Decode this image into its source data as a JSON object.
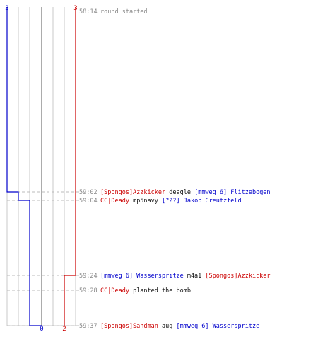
{
  "colors": {
    "team_blue": "#0000cc",
    "team_red": "#cc0000",
    "text": "#111111",
    "muted": "#888888",
    "grid": "#c8c8c8",
    "center": "#888888",
    "dashed": "#bbbbbb"
  },
  "score": {
    "blue_start": "3",
    "red_start": "3",
    "blue_end": "0",
    "red_end": "2"
  },
  "events": [
    {
      "time": "58:14",
      "kind": "info",
      "parts": [
        {
          "text": "round started",
          "team": "muted"
        }
      ]
    },
    {
      "time": "59:02",
      "kind": "kill",
      "parts": [
        {
          "text": "[Spongos]Azzkicker",
          "team": "red"
        },
        {
          "text": " deagle ",
          "team": "text"
        },
        {
          "text": "[mmweg 6] Flitzebogen",
          "team": "blue"
        }
      ]
    },
    {
      "time": "59:04",
      "kind": "kill",
      "parts": [
        {
          "text": "CC|Deady",
          "team": "red"
        },
        {
          "text": " mp5navy ",
          "team": "text"
        },
        {
          "text": "[???] Jakob Creutzfeld",
          "team": "blue"
        }
      ]
    },
    {
      "time": "59:24",
      "kind": "kill",
      "parts": [
        {
          "text": "[mmweg 6] Wasserspritze",
          "team": "blue"
        },
        {
          "text": " m4a1 ",
          "team": "text"
        },
        {
          "text": "[Spongos]Azzkicker",
          "team": "red"
        }
      ]
    },
    {
      "time": "59:28",
      "kind": "bomb",
      "parts": [
        {
          "text": "CC|Deady",
          "team": "red"
        },
        {
          "text": " planted the bomb",
          "team": "text"
        }
      ]
    },
    {
      "time": "59:37",
      "kind": "kill",
      "parts": [
        {
          "text": "[Spongos]Sandman",
          "team": "red"
        },
        {
          "text": " aug ",
          "team": "text"
        },
        {
          "text": "[mmweg 6] Wasserspritze",
          "team": "blue"
        }
      ]
    }
  ]
}
